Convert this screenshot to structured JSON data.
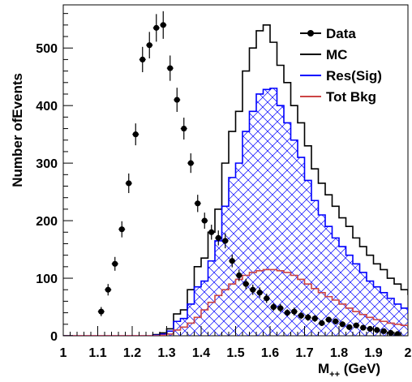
{
  "chart_data": {
    "type": "histogram",
    "xlabel_main": "M",
    "xlabel_sub": "++",
    "xlabel_unit": " (GeV)",
    "ylabel": "Number ofEvents",
    "xlim": [
      1.0,
      2.0
    ],
    "ylim": [
      0,
      575
    ],
    "bin_width": 0.02,
    "x_ticks": [
      1,
      1.1,
      1.2,
      1.3,
      1.4,
      1.5,
      1.6,
      1.7,
      1.8,
      1.9,
      2
    ],
    "x_tick_labels": [
      "1",
      "1.1",
      "1.2",
      "1.3",
      "1.4",
      "1.5",
      "1.6",
      "1.7",
      "1.8",
      "1.9",
      "2"
    ],
    "y_ticks": [
      0,
      100,
      200,
      300,
      400,
      500
    ],
    "y_tick_labels": [
      "0",
      "100",
      "200",
      "300",
      "400",
      "500"
    ],
    "grid": false,
    "legend_position": "top-right",
    "legend": [
      {
        "label": "Data",
        "style": "marker-line",
        "color": "#000000"
      },
      {
        "label": "MC",
        "style": "line",
        "color": "#000000"
      },
      {
        "label": "Res(Sig)",
        "style": "line",
        "color": "#0000ff"
      },
      {
        "label": "Tot Bkg",
        "style": "line",
        "color": "#cc4444"
      }
    ],
    "series": [
      {
        "name": "MC",
        "color": "#000000",
        "kind": "step",
        "values": [
          0,
          0,
          0,
          2,
          5,
          12,
          38,
          45,
          80,
          120,
          135,
          180,
          220,
          300,
          355,
          390,
          460,
          500,
          530,
          540,
          510,
          470,
          440,
          400,
          370,
          330,
          290,
          265,
          245,
          225,
          205,
          190,
          170,
          155,
          140,
          125,
          115,
          100,
          90,
          80,
          72,
          65,
          58,
          52,
          47,
          43,
          40,
          37,
          34,
          32,
          30,
          28,
          26,
          24,
          22,
          20,
          18,
          16,
          14,
          12
        ]
      },
      {
        "name": "Res(Sig)",
        "color": "#0000ff",
        "kind": "step-hatched",
        "values": [
          0,
          0,
          0,
          1,
          3,
          8,
          25,
          30,
          55,
          85,
          95,
          130,
          165,
          225,
          275,
          300,
          355,
          390,
          420,
          428,
          430,
          400,
          370,
          340,
          310,
          270,
          235,
          210,
          190,
          170,
          155,
          140,
          125,
          110,
          95,
          85,
          75,
          65,
          55,
          48,
          40,
          34,
          28,
          24,
          20,
          17,
          14,
          12,
          10,
          8,
          7,
          6,
          5,
          4,
          3,
          3,
          2,
          2,
          1,
          1
        ]
      },
      {
        "name": "Tot Bkg",
        "color": "#cc4444",
        "kind": "step",
        "values": [
          0,
          0,
          0,
          0,
          1,
          3,
          10,
          15,
          22,
          32,
          45,
          58,
          70,
          80,
          90,
          98,
          105,
          110,
          113,
          115,
          115,
          113,
          110,
          105,
          98,
          90,
          82,
          75,
          68,
          62,
          55,
          48,
          42,
          37,
          32,
          28,
          25,
          22,
          20,
          18,
          16,
          14,
          13,
          12,
          11,
          10,
          9,
          8,
          7,
          6,
          5,
          5,
          4,
          4,
          3,
          3,
          2,
          2,
          1,
          1
        ]
      },
      {
        "name": "Data",
        "color": "#000000",
        "kind": "points",
        "x": [
          1.11,
          1.13,
          1.15,
          1.17,
          1.19,
          1.21,
          1.23,
          1.25,
          1.27,
          1.29,
          1.31,
          1.33,
          1.35,
          1.37,
          1.39,
          1.41,
          1.43,
          1.45,
          1.47,
          1.49,
          1.51,
          1.53,
          1.55,
          1.57,
          1.59,
          1.61,
          1.63,
          1.65,
          1.67,
          1.69,
          1.71,
          1.73,
          1.75,
          1.77,
          1.79,
          1.81,
          1.83,
          1.85,
          1.87,
          1.89,
          1.91,
          1.93,
          1.95,
          1.97
        ],
        "y": [
          42,
          80,
          125,
          185,
          265,
          350,
          480,
          505,
          535,
          540,
          465,
          410,
          360,
          300,
          230,
          200,
          180,
          170,
          165,
          130,
          105,
          90,
          80,
          75,
          65,
          50,
          48,
          40,
          42,
          35,
          32,
          30,
          22,
          28,
          25,
          20,
          15,
          18,
          14,
          12,
          10,
          8,
          5,
          3
        ],
        "err": [
          8,
          10,
          12,
          14,
          17,
          19,
          22,
          23,
          24,
          24,
          22,
          21,
          19,
          17,
          15,
          14,
          13,
          13,
          13,
          11,
          10,
          9,
          9,
          9,
          8,
          7,
          7,
          6,
          7,
          6,
          6,
          6,
          5,
          5,
          5,
          5,
          4,
          4,
          4,
          4,
          3,
          3,
          2,
          2
        ]
      }
    ]
  }
}
